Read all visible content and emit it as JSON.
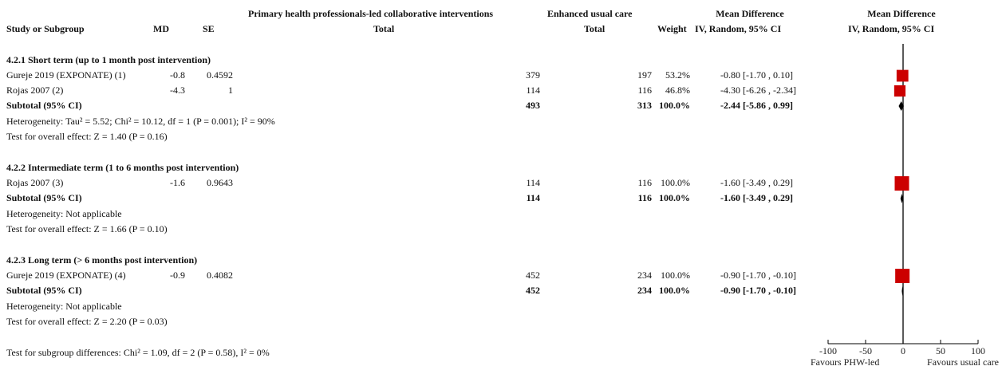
{
  "header": {
    "group1": "Primary health professionals-led collaborative interventions",
    "group2": "Enhanced usual care",
    "md_header_top": "Mean Difference",
    "plot_header_top": "Mean Difference",
    "study": "Study or Subgroup",
    "md": "MD",
    "se": "SE",
    "total1": "Total",
    "total2": "Total",
    "weight": "Weight",
    "md_method": "IV, Random, 95% CI",
    "plot_method": "IV, Random, 95% CI"
  },
  "footer": {
    "subgroup_test": "Test for subgroup differences: Chi² = 1.09, df = 2 (P = 0.58), I² = 0%"
  },
  "colors": {
    "study_box": "#cc0000",
    "diamond": "#000000",
    "axis": "#000000"
  },
  "chart_data": {
    "type": "forest",
    "axis": {
      "ticks": [
        -100,
        -50,
        0,
        50,
        100
      ],
      "tick_labels": [
        "-100",
        "-50",
        "0",
        "50",
        "100"
      ],
      "left_label": "Favours PHW-led",
      "right_label": "Favours usual care",
      "xlim": [
        -100,
        100
      ]
    },
    "subgroups": [
      {
        "title": "4.2.1 Short term (up to 1 month post intervention)",
        "studies": [
          {
            "name": "Gureje 2019 (EXPONATE) (1)",
            "md": "-0.8",
            "se": "0.4592",
            "total1": "379",
            "total2": "197",
            "weight": "53.2%",
            "ci": "-0.80 [-1.70 , 0.10]",
            "est": -0.8,
            "lo": -1.7,
            "hi": 0.1,
            "w": 53.2
          },
          {
            "name": "Rojas 2007 (2)",
            "md": "-4.3",
            "se": "1",
            "total1": "114",
            "total2": "116",
            "weight": "46.8%",
            "ci": "-4.30 [-6.26 , -2.34]",
            "est": -4.3,
            "lo": -6.26,
            "hi": -2.34,
            "w": 46.8
          }
        ],
        "subtotal": {
          "label": "Subtotal (95% CI)",
          "total1": "493",
          "total2": "313",
          "weight": "100.0%",
          "ci": "-2.44 [-5.86 , 0.99]",
          "est": -2.44,
          "lo": -5.86,
          "hi": 0.99
        },
        "heterogeneity": "Heterogeneity: Tau² = 5.52; Chi² = 10.12, df = 1 (P = 0.001); I² = 90%",
        "overall": "Test for overall effect: Z = 1.40 (P = 0.16)"
      },
      {
        "title": "4.2.2 Intermediate term (1 to 6 months post intervention)",
        "studies": [
          {
            "name": "Rojas 2007 (3)",
            "md": "-1.6",
            "se": "0.9643",
            "total1": "114",
            "total2": "116",
            "weight": "100.0%",
            "ci": "-1.60 [-3.49 , 0.29]",
            "est": -1.6,
            "lo": -3.49,
            "hi": 0.29,
            "w": 100.0
          }
        ],
        "subtotal": {
          "label": "Subtotal (95% CI)",
          "total1": "114",
          "total2": "116",
          "weight": "100.0%",
          "ci": "-1.60 [-3.49 , 0.29]",
          "est": -1.6,
          "lo": -3.49,
          "hi": 0.29
        },
        "heterogeneity": "Heterogeneity: Not applicable",
        "overall": "Test for overall effect: Z = 1.66 (P = 0.10)"
      },
      {
        "title": "4.2.3 Long term (> 6 months post intervention)",
        "studies": [
          {
            "name": "Gureje 2019 (EXPONATE) (4)",
            "md": "-0.9",
            "se": "0.4082",
            "total1": "452",
            "total2": "234",
            "weight": "100.0%",
            "ci": "-0.90 [-1.70 , -0.10]",
            "est": -0.9,
            "lo": -1.7,
            "hi": -0.1,
            "w": 100.0
          }
        ],
        "subtotal": {
          "label": "Subtotal (95% CI)",
          "total1": "452",
          "total2": "234",
          "weight": "100.0%",
          "ci": "-0.90 [-1.70 , -0.10]",
          "est": -0.9,
          "lo": -1.7,
          "hi": -0.1
        },
        "heterogeneity": "Heterogeneity: Not applicable",
        "overall": "Test for overall effect: Z = 2.20 (P = 0.03)"
      }
    ]
  }
}
